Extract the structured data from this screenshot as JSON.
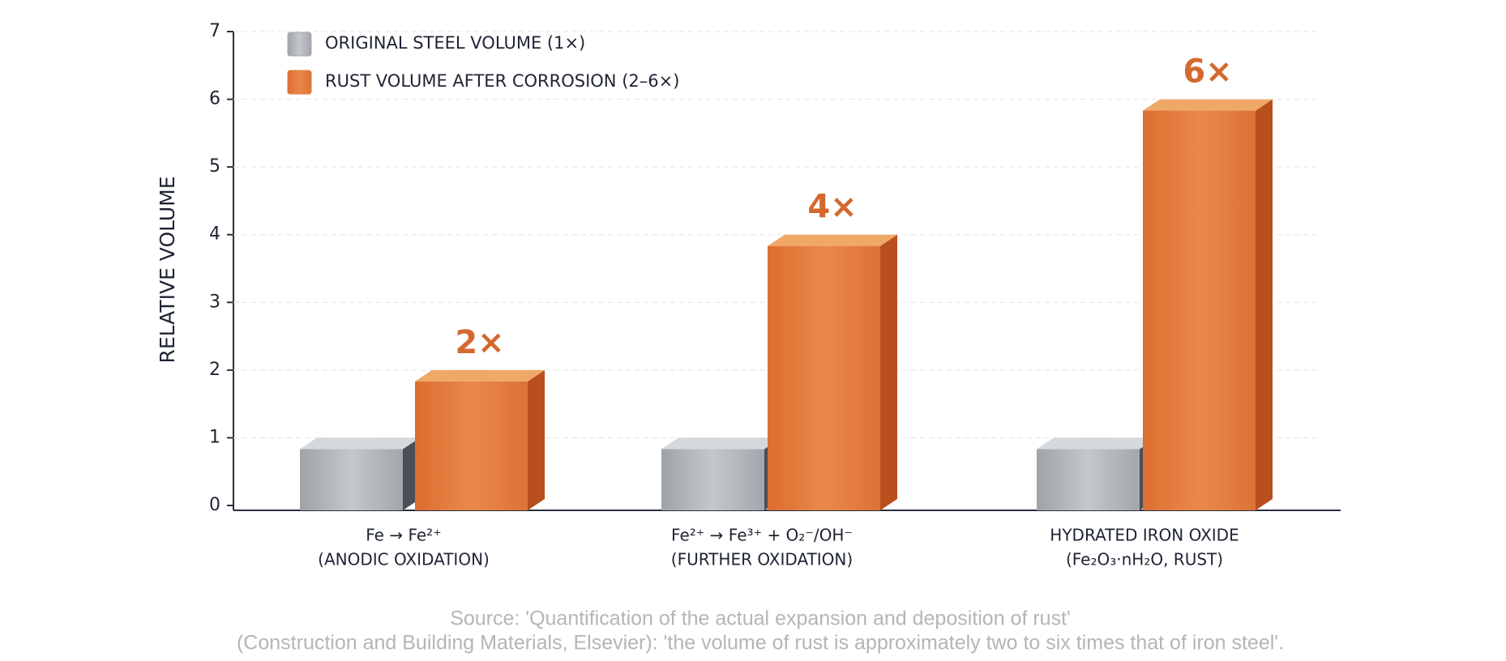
{
  "chart_data": {
    "type": "bar",
    "y_label": "RELATIVE VOLUME",
    "categories": [
      [
        "Fe → Fe²⁺",
        "(ANODIC OXIDATION)"
      ],
      [
        "Fe²⁺ → Fe³⁺ + O₂⁻/OH⁻",
        "(FURTHER OXIDATION)"
      ],
      [
        "HYDRATED IRON OXIDE",
        "(Fe₂O₃·nH₂O, RUST)"
      ]
    ],
    "series": [
      {
        "name": "ORIGINAL STEEL VOLUME (1×)",
        "color": "#a9acb0",
        "values": [
          1,
          1,
          1
        ]
      },
      {
        "name": "RUST VOLUME AFTER CORROSION (2–6×)",
        "color": "#e07838",
        "values": [
          2,
          4,
          6
        ],
        "value_labels": [
          "2×",
          "4×",
          "6×"
        ]
      }
    ],
    "ylim": [
      0,
      7
    ],
    "yticks": [
      0,
      1,
      2,
      3,
      4,
      5,
      6,
      7
    ],
    "grid": true,
    "legend": "top-left",
    "source": [
      "Source: 'Quantification of the actual expansion and deposition of rust'",
      "(Construction and Building Materials, Elsevier): 'the volume of rust is approximately two to six times that of iron steel'."
    ]
  }
}
